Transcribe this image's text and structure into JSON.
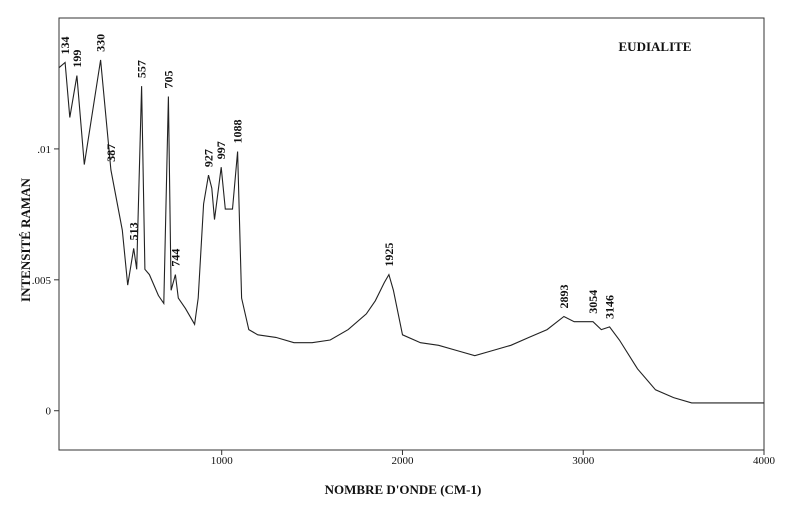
{
  "chart_data": {
    "type": "line",
    "title": "EUDIALITE",
    "xlabel": "NOMBRE D'ONDE (CM-1)",
    "ylabel": "INTENSITÉ RAMAN",
    "xlim": [
      100,
      4000
    ],
    "ylim": [
      -0.0015,
      0.015
    ],
    "xticks": [
      1000,
      2000,
      3000,
      4000
    ],
    "yticks": [
      0,
      {
        "value": 0.005,
        "label": ".005"
      },
      {
        "value": 0.01,
        "label": ".01"
      }
    ],
    "color": "#222",
    "x": [
      100,
      134,
      160,
      199,
      240,
      330,
      387,
      450,
      480,
      513,
      530,
      557,
      575,
      600,
      650,
      680,
      705,
      720,
      744,
      760,
      800,
      850,
      870,
      900,
      927,
      945,
      960,
      997,
      1020,
      1060,
      1088,
      1110,
      1150,
      1200,
      1300,
      1400,
      1500,
      1600,
      1700,
      1800,
      1850,
      1900,
      1925,
      1950,
      2000,
      2100,
      2200,
      2300,
      2400,
      2500,
      2600,
      2700,
      2800,
      2893,
      2950,
      3054,
      3100,
      3146,
      3200,
      3300,
      3400,
      3500,
      3600,
      3700,
      3800,
      3900,
      4000
    ],
    "values": [
      0.0131,
      0.0133,
      0.0112,
      0.0128,
      0.0094,
      0.0134,
      0.0092,
      0.0069,
      0.0048,
      0.0062,
      0.0054,
      0.0124,
      0.0054,
      0.0052,
      0.0044,
      0.0041,
      0.012,
      0.0046,
      0.0052,
      0.0043,
      0.0039,
      0.0033,
      0.0043,
      0.0079,
      0.009,
      0.0085,
      0.0073,
      0.0093,
      0.0077,
      0.0077,
      0.0099,
      0.0043,
      0.0031,
      0.0029,
      0.0028,
      0.0026,
      0.0026,
      0.0027,
      0.0031,
      0.0037,
      0.0042,
      0.0049,
      0.0052,
      0.0046,
      0.0029,
      0.0026,
      0.0025,
      0.0023,
      0.0021,
      0.0023,
      0.0025,
      0.0028,
      0.0031,
      0.0036,
      0.0034,
      0.0034,
      0.0031,
      0.0032,
      0.0027,
      0.0016,
      0.0008,
      0.0005,
      0.0003,
      0.0003,
      0.0003,
      0.0003,
      0.0003
    ],
    "peaks": [
      134,
      199,
      330,
      387,
      513,
      557,
      705,
      744,
      927,
      997,
      1088,
      1925,
      2893,
      3054,
      3146
    ]
  }
}
